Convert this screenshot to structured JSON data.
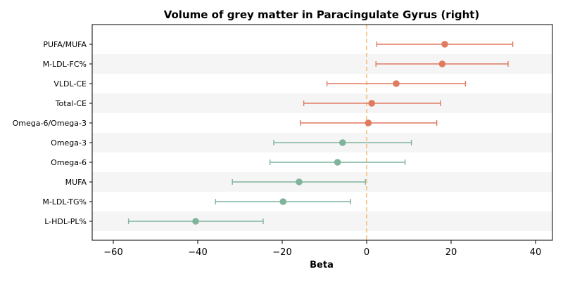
{
  "chart_data": {
    "type": "forest",
    "title": "Volume of grey matter in Paracingulate Gyrus (right)",
    "xlabel": "Beta",
    "ylabel": "",
    "xlim": [
      -65,
      44
    ],
    "xticks": [
      -60,
      -40,
      -20,
      0,
      20,
      40
    ],
    "xtick_labels": [
      "−60",
      "−40",
      "−20",
      "0",
      "20",
      "40"
    ],
    "reference_line": 0,
    "colors": {
      "positive": "#e07b61",
      "negative": "#7fb49b",
      "reference": "#f5c07a",
      "band": "#f5f5f5"
    },
    "items": [
      {
        "label": "PUFA/MUFA",
        "beta": 18.5,
        "lower": 2.4,
        "upper": 34.6
      },
      {
        "label": "M-LDL-FC%",
        "beta": 17.9,
        "lower": 2.2,
        "upper": 33.5
      },
      {
        "label": "VLDL-CE",
        "beta": 7.0,
        "lower": -9.4,
        "upper": 23.4
      },
      {
        "label": "Total-CE",
        "beta": 1.2,
        "lower": -14.9,
        "upper": 17.5
      },
      {
        "label": "Omega-6/Omega-3",
        "beta": 0.4,
        "lower": -15.7,
        "upper": 16.6
      },
      {
        "label": "Omega-3",
        "beta": -5.7,
        "lower": -22.0,
        "upper": 10.6
      },
      {
        "label": "Omega-6",
        "beta": -6.9,
        "lower": -22.9,
        "upper": 9.1
      },
      {
        "label": "MUFA",
        "beta": -16.0,
        "lower": -31.8,
        "upper": -0.3
      },
      {
        "label": "M-LDL-TG%",
        "beta": -19.8,
        "lower": -35.8,
        "upper": -3.8
      },
      {
        "label": "L-HDL-PL%",
        "beta": -40.5,
        "lower": -56.4,
        "upper": -24.5
      }
    ]
  }
}
